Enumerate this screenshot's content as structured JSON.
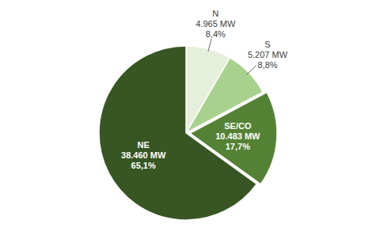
{
  "chart_data": {
    "type": "pie",
    "categories": [
      "N",
      "S",
      "SE/CO",
      "NE"
    ],
    "values": [
      4965,
      5207,
      10483,
      38460
    ],
    "value_labels": [
      "4.965 MW",
      "5.207 MW",
      "10.483 MW",
      "38.460 MW"
    ],
    "percentages": [
      8.4,
      8.8,
      17.7,
      65.1
    ],
    "percentage_labels": [
      "8,4%",
      "8,8%",
      "17,7%",
      "65,1%"
    ],
    "colors": [
      "#e6efd9",
      "#a9d18e",
      "#548235",
      "#375623"
    ],
    "data_labels": true
  }
}
